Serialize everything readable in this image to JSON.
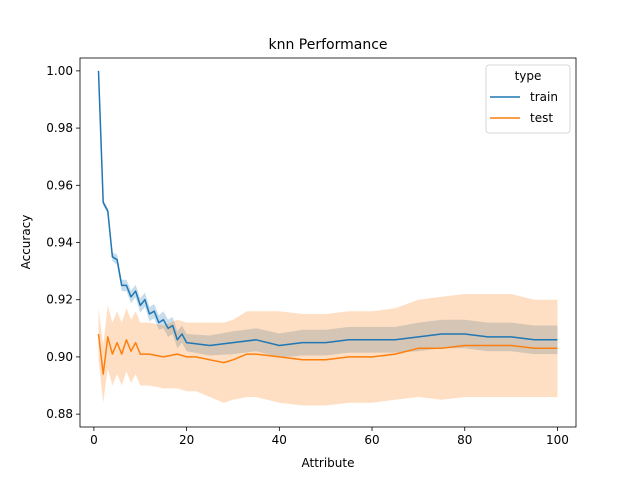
{
  "chart_data": {
    "type": "line",
    "title": "knn Performance",
    "xlabel": "Attribute",
    "ylabel": "Accuracy",
    "xlim": [
      -3,
      104
    ],
    "ylim": [
      0.8755,
      1.0045
    ],
    "xticks": [
      0,
      20,
      40,
      60,
      80,
      100
    ],
    "yticks": [
      0.88,
      0.9,
      0.92,
      0.94,
      0.96,
      0.98,
      1.0
    ],
    "ytick_labels": [
      "0.88",
      "0.90",
      "0.92",
      "0.94",
      "0.96",
      "0.98",
      "1.00"
    ],
    "grid": false,
    "legend": {
      "title": "type",
      "placement": "top-right"
    },
    "series": [
      {
        "name": "train",
        "color": "#1f77b4",
        "x": [
          1,
          2,
          3,
          4,
          5,
          6,
          7,
          8,
          9,
          10,
          11,
          12,
          13,
          14,
          15,
          16,
          17,
          18,
          19,
          20,
          25,
          30,
          35,
          40,
          45,
          50,
          55,
          60,
          65,
          70,
          75,
          80,
          85,
          90,
          95,
          100
        ],
        "y": [
          1.0,
          0.954,
          0.951,
          0.935,
          0.934,
          0.925,
          0.925,
          0.921,
          0.923,
          0.918,
          0.92,
          0.915,
          0.916,
          0.912,
          0.913,
          0.91,
          0.911,
          0.906,
          0.908,
          0.905,
          0.904,
          0.905,
          0.906,
          0.904,
          0.905,
          0.905,
          0.906,
          0.906,
          0.906,
          0.907,
          0.908,
          0.908,
          0.907,
          0.907,
          0.906,
          0.906
        ],
        "band_half_width": [
          0.0003,
          0.001,
          0.001,
          0.0015,
          0.0018,
          0.002,
          0.002,
          0.0022,
          0.0022,
          0.0025,
          0.0025,
          0.0025,
          0.0025,
          0.0025,
          0.003,
          0.003,
          0.003,
          0.003,
          0.003,
          0.003,
          0.0035,
          0.004,
          0.004,
          0.0042,
          0.0045,
          0.0045,
          0.0045,
          0.0045,
          0.0045,
          0.005,
          0.005,
          0.005,
          0.005,
          0.005,
          0.005,
          0.005
        ]
      },
      {
        "name": "test",
        "color": "#ff7f0e",
        "x": [
          1,
          2,
          3,
          4,
          5,
          6,
          7,
          8,
          9,
          10,
          12,
          15,
          18,
          20,
          22,
          25,
          28,
          30,
          33,
          35,
          40,
          45,
          50,
          55,
          60,
          65,
          70,
          75,
          80,
          85,
          90,
          95,
          100
        ],
        "y": [
          0.908,
          0.894,
          0.907,
          0.901,
          0.905,
          0.901,
          0.906,
          0.902,
          0.905,
          0.901,
          0.901,
          0.9,
          0.901,
          0.9,
          0.9,
          0.899,
          0.898,
          0.899,
          0.901,
          0.901,
          0.9,
          0.899,
          0.899,
          0.9,
          0.9,
          0.901,
          0.903,
          0.903,
          0.904,
          0.904,
          0.904,
          0.903,
          0.903
        ],
        "band_half_width": [
          0.009,
          0.01,
          0.011,
          0.011,
          0.011,
          0.011,
          0.011,
          0.011,
          0.011,
          0.011,
          0.011,
          0.011,
          0.012,
          0.012,
          0.012,
          0.013,
          0.014,
          0.014,
          0.015,
          0.015,
          0.016,
          0.016,
          0.016,
          0.016,
          0.016,
          0.016,
          0.017,
          0.018,
          0.018,
          0.018,
          0.018,
          0.017,
          0.017
        ]
      }
    ]
  }
}
